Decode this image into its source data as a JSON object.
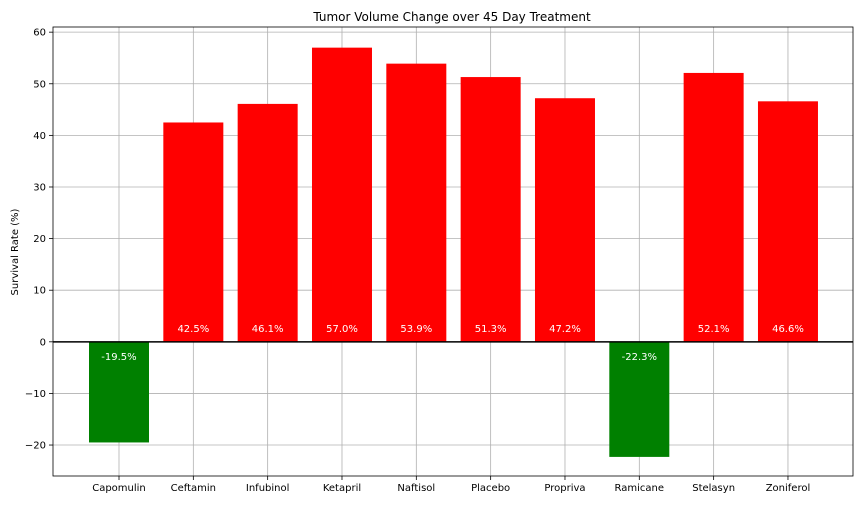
{
  "chart_data": {
    "type": "bar",
    "title": "Tumor Volume Change over 45 Day Treatment",
    "xlabel": "",
    "ylabel": "Survival Rate (%)",
    "categories": [
      "Capomulin",
      "Ceftamin",
      "Infubinol",
      "Ketapril",
      "Naftisol",
      "Placebo",
      "Propriva",
      "Ramicane",
      "Stelasyn",
      "Zoniferol"
    ],
    "values": [
      -19.5,
      42.5,
      46.1,
      57.0,
      53.9,
      51.3,
      47.2,
      -22.3,
      52.1,
      46.6
    ],
    "data_labels": [
      "-19.5%",
      "42.5%",
      "46.1%",
      "57.0%",
      "53.9%",
      "51.3%",
      "47.2%",
      "-22.3%",
      "52.1%",
      "46.6%"
    ],
    "ylim": [
      -26,
      61
    ],
    "yticks": [
      -20,
      -10,
      0,
      10,
      20,
      30,
      40,
      50,
      60
    ],
    "ytick_labels": [
      "−20",
      "−10",
      "0",
      "10",
      "20",
      "30",
      "40",
      "50",
      "60"
    ],
    "grid": true,
    "zero_line": true,
    "colors": {
      "positive": "#ff0000",
      "negative": "#008000"
    }
  }
}
